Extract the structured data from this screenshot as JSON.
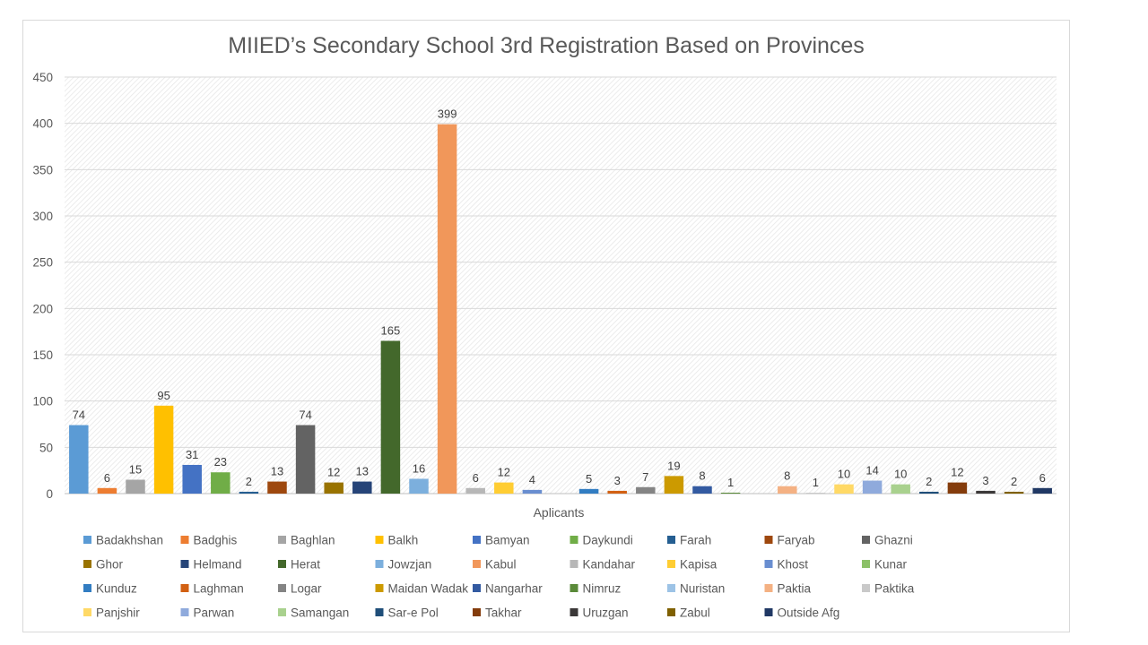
{
  "chart_data": {
    "type": "bar",
    "title": "MIIED’s Secondary School 3rd Registration Based on Provinces",
    "xlabel": "Aplicants",
    "ylabel": "",
    "ylim": [
      0,
      450
    ],
    "yticks": [
      0,
      50,
      100,
      150,
      200,
      250,
      300,
      350,
      400,
      450
    ],
    "grid": true,
    "legend_position": "bottom",
    "series": [
      {
        "name": "Badakhshan",
        "value": 74,
        "color": "#5B9BD5"
      },
      {
        "name": "Badghis",
        "value": 6,
        "color": "#ED7D31"
      },
      {
        "name": "Baghlan",
        "value": 15,
        "color": "#A5A5A5"
      },
      {
        "name": "Balkh",
        "value": 95,
        "color": "#FFC000"
      },
      {
        "name": "Bamyan",
        "value": 31,
        "color": "#4472C4"
      },
      {
        "name": "Daykundi",
        "value": 23,
        "color": "#70AD47"
      },
      {
        "name": "Farah",
        "value": 2,
        "color": "#255E91"
      },
      {
        "name": "Faryab",
        "value": 13,
        "color": "#9E480E"
      },
      {
        "name": "Ghazni",
        "value": 74,
        "color": "#636363"
      },
      {
        "name": "Ghor",
        "value": 12,
        "color": "#997300"
      },
      {
        "name": "Helmand",
        "value": 13,
        "color": "#264478"
      },
      {
        "name": "Herat",
        "value": 165,
        "color": "#43682B"
      },
      {
        "name": "Jowzjan",
        "value": 16,
        "color": "#7CAFDD"
      },
      {
        "name": "Kabul",
        "value": 399,
        "color": "#F1975A"
      },
      {
        "name": "Kandahar",
        "value": 6,
        "color": "#B7B7B7"
      },
      {
        "name": "Kapisa",
        "value": 12,
        "color": "#FFCD33"
      },
      {
        "name": "Khost",
        "value": 4,
        "color": "#698ED0"
      },
      {
        "name": "Kunar",
        "value": null,
        "color": "#8CC168"
      },
      {
        "name": "Kunduz",
        "value": 5,
        "color": "#327DC2"
      },
      {
        "name": "Laghman",
        "value": 3,
        "color": "#D26012"
      },
      {
        "name": "Logar",
        "value": 7,
        "color": "#848484"
      },
      {
        "name": "Maidan Wadak",
        "value": 19,
        "color": "#CC9A00"
      },
      {
        "name": "Nangarhar",
        "value": 8,
        "color": "#335AA1"
      },
      {
        "name": "Nimruz",
        "value": 1,
        "color": "#5A8A39"
      },
      {
        "name": "Nuristan",
        "value": null,
        "color": "#9DC3E6"
      },
      {
        "name": "Paktia",
        "value": 8,
        "color": "#F4B183"
      },
      {
        "name": "Paktika",
        "value": 1,
        "color": "#C9C9C9"
      },
      {
        "name": "Panjshir",
        "value": 10,
        "color": "#FFD966"
      },
      {
        "name": "Parwan",
        "value": 14,
        "color": "#8FAADC"
      },
      {
        "name": "Samangan",
        "value": 10,
        "color": "#A9D18E"
      },
      {
        "name": "Sar-e Pol",
        "value": 2,
        "color": "#1F4E79"
      },
      {
        "name": "Takhar",
        "value": 12,
        "color": "#843C0C"
      },
      {
        "name": "Uruzgan",
        "value": 3,
        "color": "#3B3838"
      },
      {
        "name": "Zabul",
        "value": 2,
        "color": "#7F6000"
      },
      {
        "name": "Outside Afg",
        "value": 6,
        "color": "#203864"
      }
    ]
  }
}
